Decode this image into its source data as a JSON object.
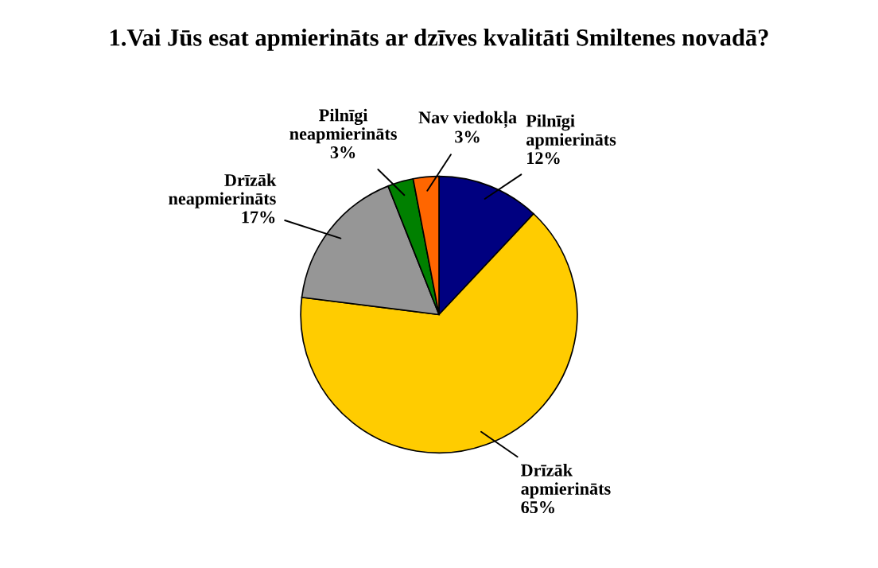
{
  "chart_data": {
    "type": "pie",
    "title": "1.Vai Jūs esat apmierināts ar dzīves kvalitāti Smiltenes novadā?",
    "categories": [
      "Pilnīgi\napmierināts",
      "Drīzāk\napmierināts",
      "Drīzāk\nneapmierināts",
      "Pilnīgi\nneapmierināts",
      "Nav viedokļa"
    ],
    "values": [
      12,
      65,
      17,
      3,
      3
    ],
    "value_labels": [
      "12%",
      "65%",
      "17%",
      "3%",
      "3%"
    ],
    "colors": [
      "#000080",
      "#ffcc00",
      "#969696",
      "#008000",
      "#ff6600"
    ]
  }
}
